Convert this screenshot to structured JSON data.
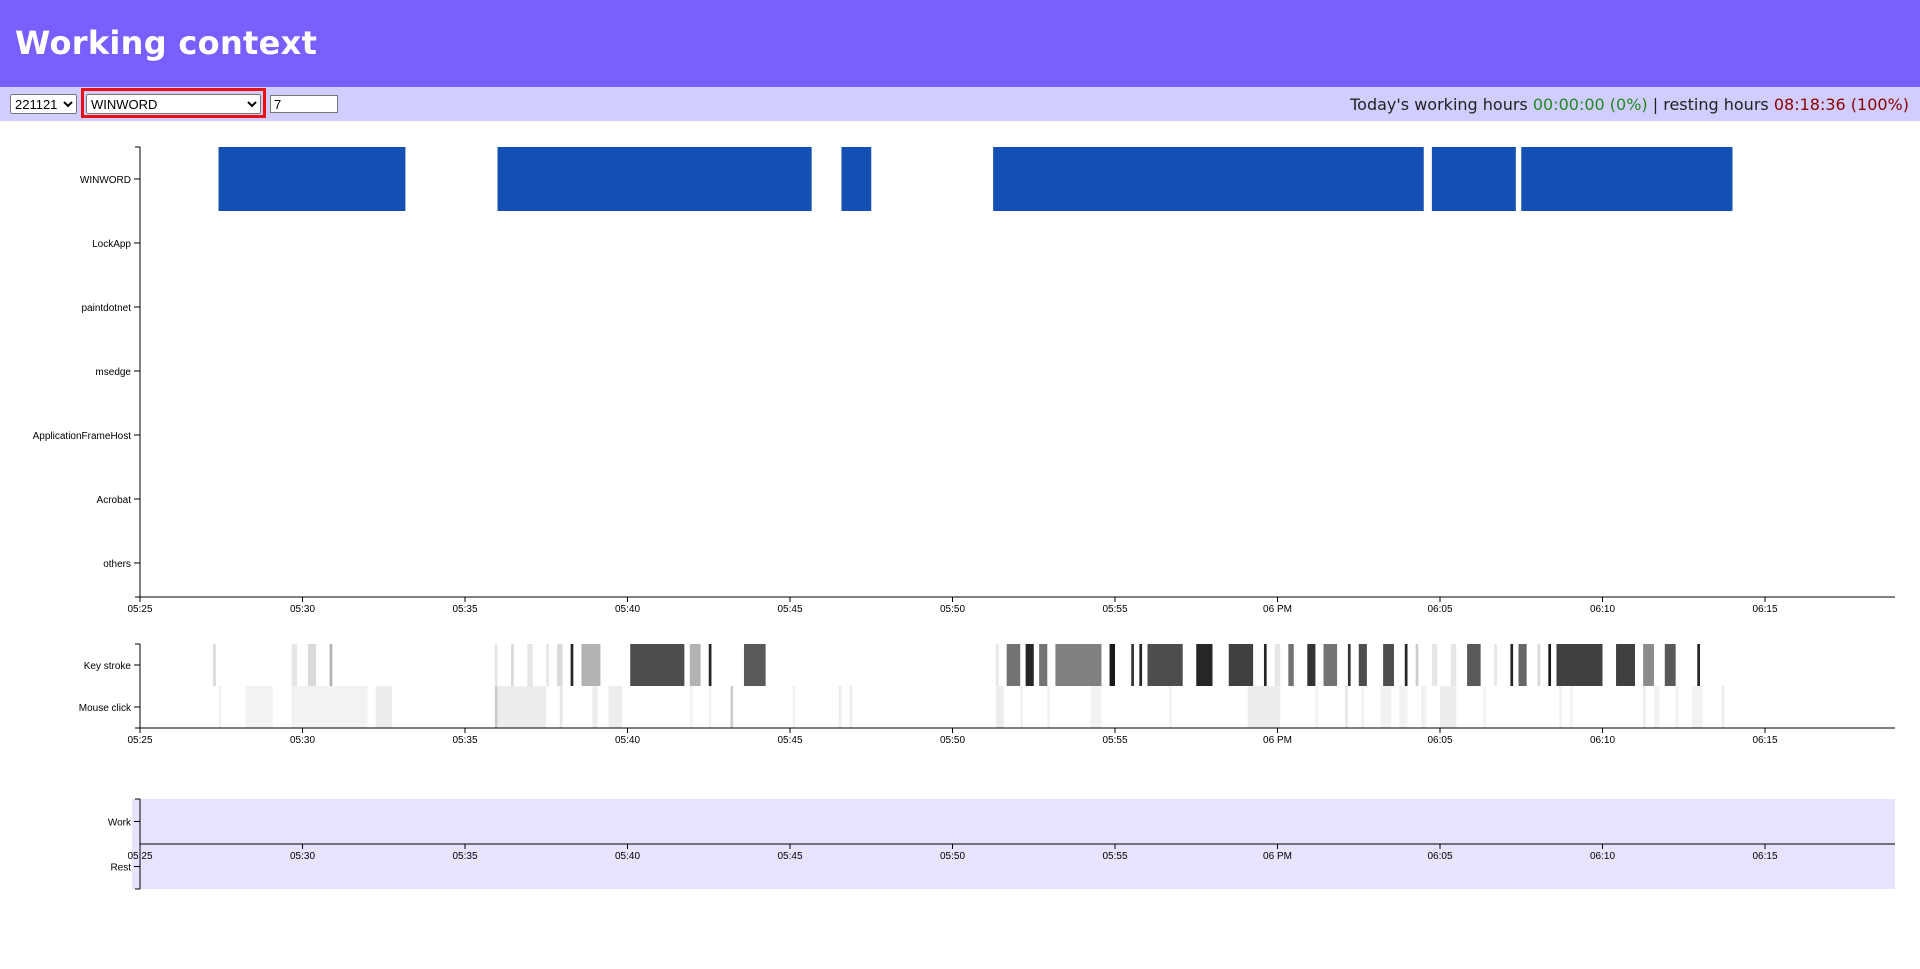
{
  "header": {
    "title": "Working context"
  },
  "toolbar": {
    "date_value": "221121",
    "app_value": "WINWORD",
    "days_value": "7",
    "status": {
      "working_label": "Today's working hours",
      "working_value": "00:00:00 (0%)",
      "separator": "|",
      "resting_label": "resting hours",
      "resting_value": "08:18:36 (100%)"
    }
  },
  "colors": {
    "header": "#7860ff",
    "toolbar": "#d2cdff",
    "app_bar": "#1450b4",
    "work_rest_band": "#e6e4ff"
  },
  "chart_data": [
    {
      "type": "timeline",
      "name": "app-usage",
      "categories": [
        "WINWORD",
        "LockApp",
        "paintdotnet",
        "msedge",
        "ApplicationFrameHost",
        "Acrobat",
        "others"
      ],
      "x_ticks": [
        "05:25",
        "05:30",
        "05:35",
        "05:40",
        "05:45",
        "05:50",
        "05:55",
        "06 PM",
        "06:05",
        "06:10",
        "06:15"
      ],
      "segments": [
        {
          "category": "WINWORD",
          "start": "17:27:25",
          "end": "17:33:10"
        },
        {
          "category": "WINWORD",
          "start": "17:36:00",
          "end": "17:45:40"
        },
        {
          "category": "WINWORD",
          "start": "17:46:35",
          "end": "17:47:30"
        },
        {
          "category": "WINWORD",
          "start": "17:51:15",
          "end": "18:04:30"
        },
        {
          "category": "WINWORD",
          "start": "18:04:45",
          "end": "18:07:20"
        },
        {
          "category": "WINWORD",
          "start": "18:07:30",
          "end": "18:14:00"
        }
      ]
    },
    {
      "type": "heatmap",
      "name": "input-activity",
      "categories": [
        "Key stroke",
        "Mouse click"
      ],
      "x_ticks": [
        "05:25",
        "05:30",
        "05:35",
        "05:40",
        "05:45",
        "05:50",
        "05:55",
        "06 PM",
        "06:05",
        "06:10",
        "06:15"
      ],
      "keystroke_cells": [
        [
          "17:27:15",
          5,
          0.15
        ],
        [
          "17:29:40",
          10,
          0.1
        ],
        [
          "17:30:10",
          15,
          0.15
        ],
        [
          "17:30:50",
          5,
          0.3
        ],
        [
          "17:35:55",
          5,
          0.1
        ],
        [
          "17:36:25",
          5,
          0.15
        ],
        [
          "17:36:55",
          10,
          0.1
        ],
        [
          "17:37:30",
          5,
          0.1
        ],
        [
          "17:37:50",
          10,
          0.15
        ],
        [
          "17:38:15",
          5,
          0.85
        ],
        [
          "17:38:35",
          35,
          0.3
        ],
        [
          "17:40:05",
          100,
          0.7
        ],
        [
          "17:41:55",
          20,
          0.3
        ],
        [
          "17:42:30",
          5,
          0.85
        ],
        [
          "17:43:35",
          40,
          0.65
        ],
        [
          "17:51:20",
          5,
          0.1
        ],
        [
          "17:51:40",
          25,
          0.55
        ],
        [
          "17:52:15",
          15,
          0.85
        ],
        [
          "17:52:40",
          15,
          0.55
        ],
        [
          "17:53:10",
          85,
          0.5
        ],
        [
          "17:54:50",
          10,
          0.9
        ],
        [
          "17:55:30",
          5,
          0.8
        ],
        [
          "17:55:45",
          5,
          0.85
        ],
        [
          "17:56:00",
          65,
          0.7
        ],
        [
          "17:57:30",
          30,
          0.85
        ],
        [
          "17:58:30",
          45,
          0.75
        ],
        [
          "17:59:35",
          5,
          0.85
        ],
        [
          "17:59:55",
          10,
          0.1
        ],
        [
          "18:00:20",
          10,
          0.55
        ],
        [
          "18:00:55",
          15,
          0.8
        ],
        [
          "18:01:25",
          25,
          0.55
        ],
        [
          "18:02:10",
          5,
          0.8
        ],
        [
          "18:02:30",
          15,
          0.7
        ],
        [
          "18:03:15",
          20,
          0.7
        ],
        [
          "18:03:55",
          5,
          0.85
        ],
        [
          "18:04:15",
          5,
          0.2
        ],
        [
          "18:04:45",
          10,
          0.1
        ],
        [
          "18:05:20",
          10,
          0.1
        ],
        [
          "18:05:50",
          25,
          0.65
        ],
        [
          "18:06:40",
          5,
          0.1
        ],
        [
          "18:07:10",
          5,
          0.85
        ],
        [
          "18:07:25",
          15,
          0.6
        ],
        [
          "18:08:00",
          5,
          0.15
        ],
        [
          "18:08:20",
          5,
          0.9
        ],
        [
          "18:08:35",
          85,
          0.75
        ],
        [
          "18:10:25",
          35,
          0.75
        ],
        [
          "18:11:15",
          20,
          0.45
        ],
        [
          "18:11:55",
          20,
          0.65
        ],
        [
          "18:12:55",
          5,
          0.85
        ]
      ],
      "mouse_cells": [
        [
          "17:27:25",
          5,
          0.05
        ],
        [
          "17:28:15",
          50,
          0.05
        ],
        [
          "17:29:40",
          140,
          0.05
        ],
        [
          "17:32:15",
          30,
          0.07
        ],
        [
          "17:35:55",
          5,
          0.2
        ],
        [
          "17:36:00",
          90,
          0.07
        ],
        [
          "17:37:55",
          5,
          0.1
        ],
        [
          "17:38:55",
          10,
          0.07
        ],
        [
          "17:39:25",
          25,
          0.07
        ],
        [
          "17:41:55",
          5,
          0.05
        ],
        [
          "17:42:30",
          5,
          0.05
        ],
        [
          "17:43:10",
          5,
          0.2
        ],
        [
          "17:45:05",
          5,
          0.05
        ],
        [
          "17:46:30",
          5,
          0.07
        ],
        [
          "17:46:50",
          5,
          0.07
        ],
        [
          "17:51:20",
          15,
          0.07
        ],
        [
          "17:52:05",
          5,
          0.05
        ],
        [
          "17:52:55",
          5,
          0.05
        ],
        [
          "17:54:15",
          20,
          0.05
        ],
        [
          "17:56:40",
          5,
          0.05
        ],
        [
          "17:59:05",
          60,
          0.07
        ],
        [
          "18:01:10",
          5,
          0.05
        ],
        [
          "18:02:05",
          5,
          0.1
        ],
        [
          "18:02:35",
          5,
          0.05
        ],
        [
          "18:03:10",
          20,
          0.05
        ],
        [
          "18:03:45",
          15,
          0.05
        ],
        [
          "18:04:25",
          10,
          0.05
        ],
        [
          "18:05:00",
          30,
          0.07
        ],
        [
          "18:06:20",
          5,
          0.05
        ],
        [
          "18:08:40",
          5,
          0.05
        ],
        [
          "18:09:00",
          5,
          0.05
        ],
        [
          "18:11:15",
          5,
          0.07
        ],
        [
          "18:11:35",
          10,
          0.05
        ],
        [
          "18:12:15",
          5,
          0.05
        ],
        [
          "18:12:45",
          20,
          0.05
        ],
        [
          "18:13:40",
          5,
          0.07
        ]
      ]
    },
    {
      "type": "timeline",
      "name": "work-rest",
      "categories": [
        "Work",
        "Rest"
      ],
      "x_ticks": [
        "05:25",
        "05:30",
        "05:35",
        "05:40",
        "05:45",
        "05:50",
        "05:55",
        "06 PM",
        "06:05",
        "06:10",
        "06:15"
      ],
      "segments": [
        {
          "category": "Work",
          "start": "17:24:45",
          "end": "18:19:00"
        },
        {
          "category": "Rest",
          "start": "17:24:45",
          "end": "18:19:00"
        }
      ]
    }
  ]
}
